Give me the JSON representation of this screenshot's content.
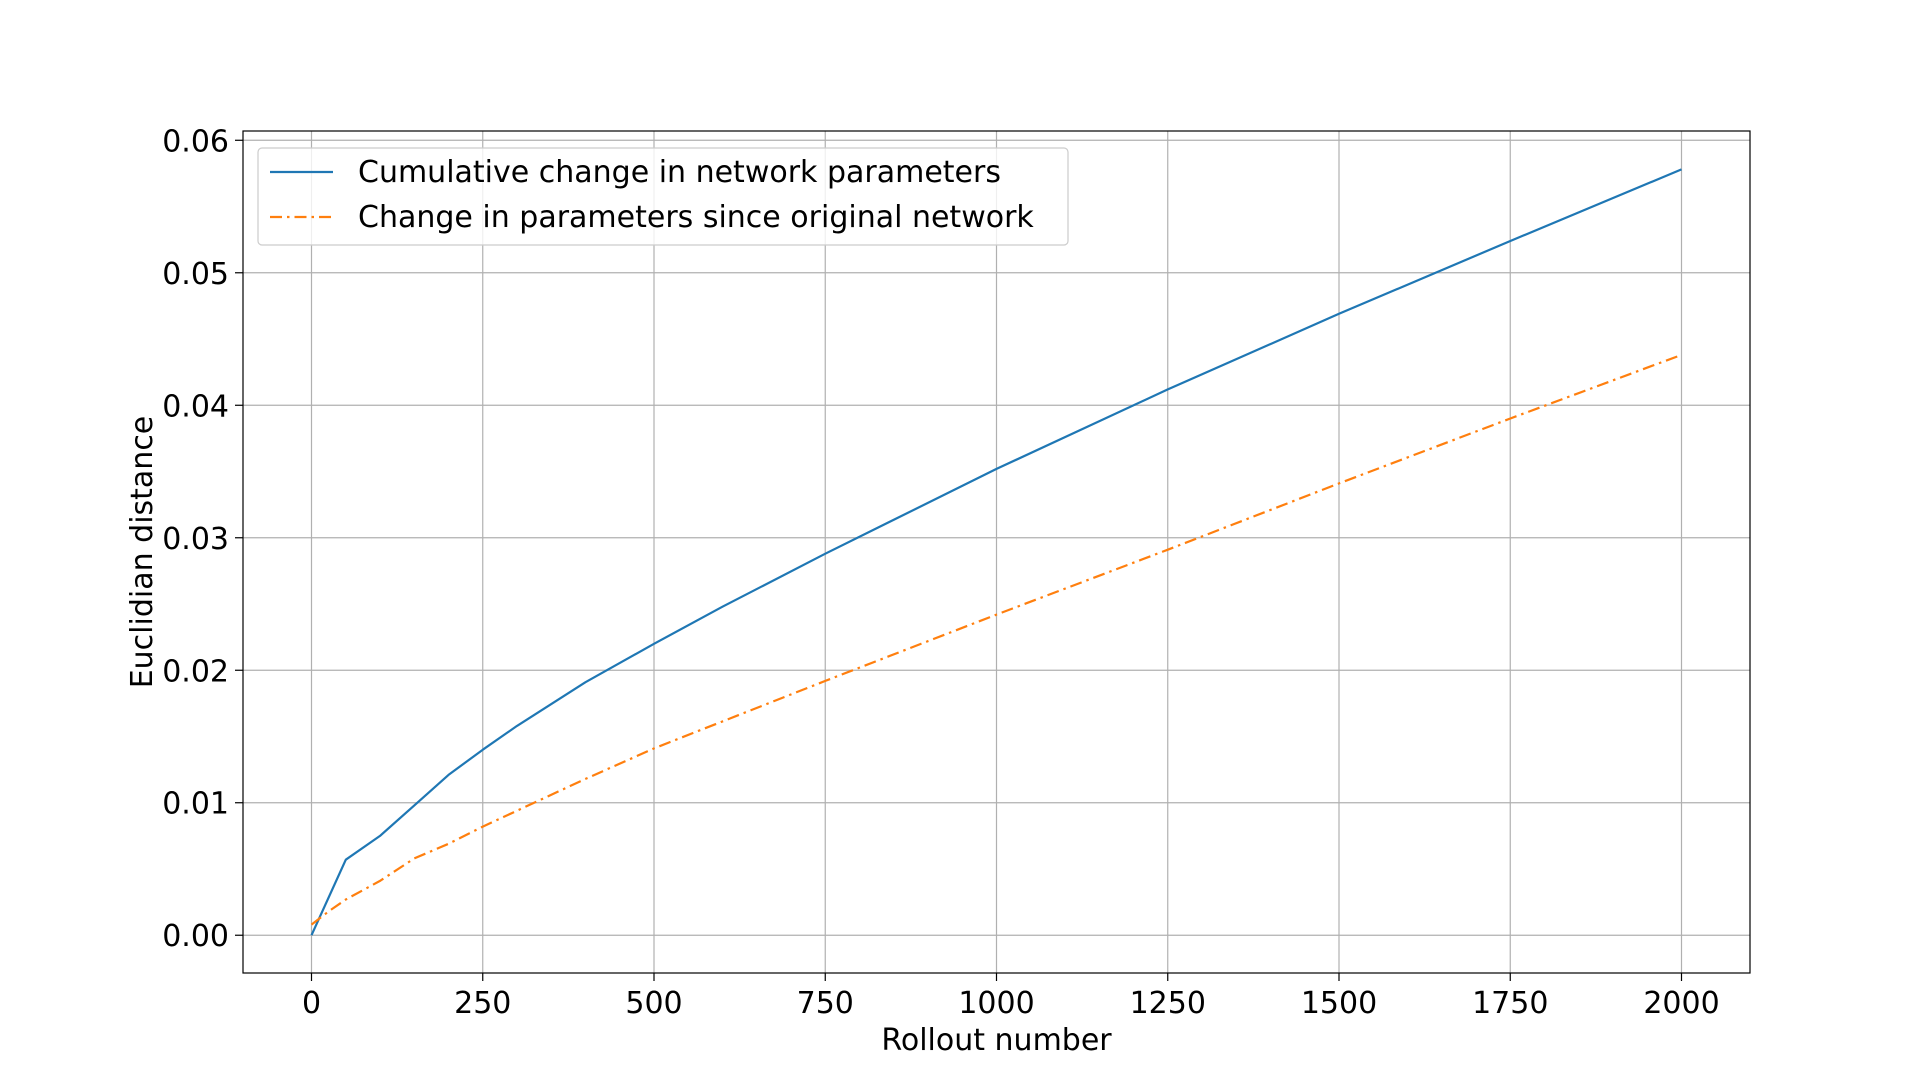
{
  "chart_data": {
    "type": "line",
    "xlabel": "Rollout number",
    "ylabel": "Euclidian distance",
    "xlim": [
      -100,
      2100
    ],
    "ylim": [
      -0.00285,
      0.0607
    ],
    "xticks": [
      0,
      250,
      500,
      750,
      1000,
      1250,
      1500,
      1750,
      2000
    ],
    "xtick_labels": [
      "0",
      "250",
      "500",
      "750",
      "1000",
      "1250",
      "1500",
      "1750",
      "2000"
    ],
    "yticks": [
      0.0,
      0.01,
      0.02,
      0.03,
      0.04,
      0.05,
      0.06
    ],
    "ytick_labels": [
      "0.00",
      "0.01",
      "0.02",
      "0.03",
      "0.04",
      "0.05",
      "0.06"
    ],
    "grid": true,
    "legend_position": "upper-left",
    "series": [
      {
        "name": "Cumulative change in network parameters",
        "color": "#1f77b4",
        "dash": "solid",
        "x": [
          0,
          50,
          100,
          150,
          200,
          250,
          300,
          400,
          500,
          600,
          750,
          1000,
          1250,
          1500,
          1750,
          2000
        ],
        "y": [
          0.0,
          0.0057,
          0.0075,
          0.0098,
          0.0121,
          0.014,
          0.0158,
          0.0191,
          0.022,
          0.0248,
          0.0288,
          0.0352,
          0.0412,
          0.0469,
          0.0524,
          0.0578
        ]
      },
      {
        "name": "Change in parameters since original network",
        "color": "#ff7f0e",
        "dash": "dashdot",
        "x": [
          0,
          25,
          50,
          100,
          150,
          200,
          250,
          300,
          400,
          500,
          750,
          1000,
          1250,
          1500,
          1750,
          2000
        ],
        "y": [
          0.0008,
          0.0018,
          0.0027,
          0.0041,
          0.0058,
          0.0069,
          0.0082,
          0.0094,
          0.0118,
          0.0141,
          0.0192,
          0.0242,
          0.0291,
          0.0341,
          0.039,
          0.0438
        ]
      }
    ]
  }
}
